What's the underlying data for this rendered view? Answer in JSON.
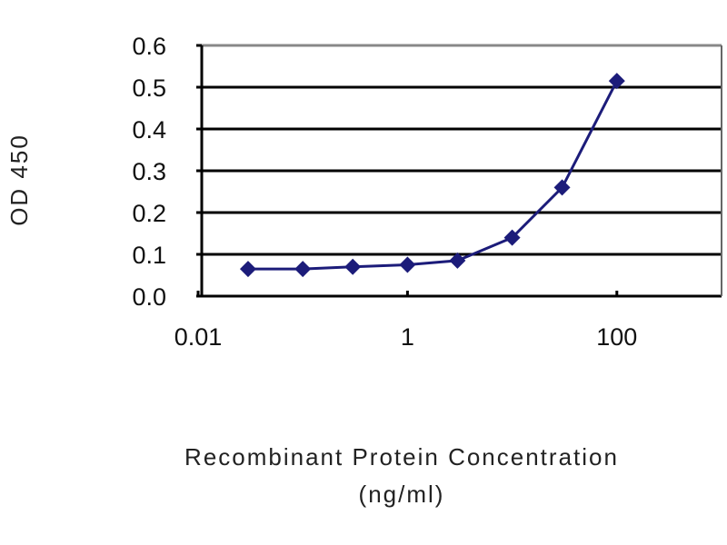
{
  "chart_data": {
    "type": "line",
    "title": "",
    "xlabel": "Recombinant Protein Concentration",
    "xlabel_unit": "(ng/ml)",
    "ylabel": "OD 450",
    "x_scale": "log",
    "xlim": [
      0.01,
      1000
    ],
    "ylim": [
      0,
      0.6
    ],
    "x_ticks": [
      0.01,
      1,
      100
    ],
    "x_tick_labels": [
      "0.01",
      "1",
      "100"
    ],
    "y_ticks": [
      0,
      0.1,
      0.2,
      0.3,
      0.4,
      0.5,
      0.6
    ],
    "y_tick_labels": [
      "0.0",
      "0.1",
      "0.2",
      "0.3",
      "0.4",
      "0.5",
      "0.6"
    ],
    "grid": "horizontal",
    "legend": "none",
    "series": [
      {
        "x": [
          0.03,
          0.1,
          0.3,
          1,
          3,
          10,
          30,
          100
        ],
        "y": [
          0.065,
          0.065,
          0.07,
          0.075,
          0.085,
          0.14,
          0.26,
          0.515
        ],
        "color": "#1c1c7a",
        "marker": "diamond"
      }
    ],
    "colors": {
      "grid": "#000000",
      "top_grid": "#888888",
      "series": "#1c1c7a"
    }
  }
}
